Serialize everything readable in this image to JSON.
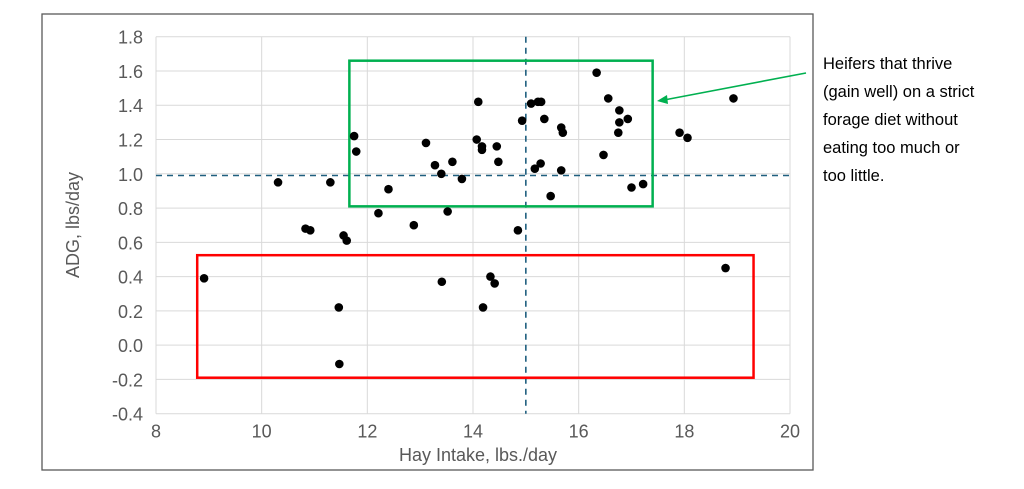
{
  "chart_data": {
    "type": "scatter",
    "title": "",
    "xlabel": "Hay Intake, lbs./day",
    "ylabel": "ADG, lbs/day",
    "xlim": [
      8,
      20
    ],
    "ylim": [
      -0.4,
      1.8
    ],
    "x_ticks": [
      "8",
      "10",
      "12",
      "14",
      "16",
      "18",
      "20"
    ],
    "y_ticks": [
      "-0.4",
      "-0.2",
      "0.0",
      "0.2",
      "0.4",
      "0.6",
      "0.8",
      "1.0",
      "1.2",
      "1.4",
      "1.6",
      "1.8"
    ],
    "grid": true,
    "legend": "none",
    "marker_color": "#000000",
    "points": [
      [
        8.91,
        0.39
      ],
      [
        10.31,
        0.95
      ],
      [
        11.3,
        0.95
      ],
      [
        10.83,
        0.68
      ],
      [
        10.92,
        0.67
      ],
      [
        11.55,
        0.64
      ],
      [
        11.61,
        0.61
      ],
      [
        11.75,
        1.22
      ],
      [
        11.79,
        1.13
      ],
      [
        11.46,
        0.22
      ],
      [
        11.47,
        -0.11
      ],
      [
        12.4,
        0.91
      ],
      [
        12.21,
        0.77
      ],
      [
        12.88,
        0.7
      ],
      [
        13.11,
        1.18
      ],
      [
        13.28,
        1.05
      ],
      [
        13.4,
        1.0
      ],
      [
        13.61,
        1.07
      ],
      [
        13.79,
        0.97
      ],
      [
        13.52,
        0.78
      ],
      [
        13.41,
        0.37
      ],
      [
        14.1,
        1.42
      ],
      [
        14.07,
        1.2
      ],
      [
        14.17,
        1.16
      ],
      [
        14.17,
        1.14
      ],
      [
        14.19,
        0.22
      ],
      [
        14.45,
        1.16
      ],
      [
        14.48,
        1.07
      ],
      [
        14.33,
        0.4
      ],
      [
        14.41,
        0.36
      ],
      [
        14.85,
        0.67
      ],
      [
        14.93,
        1.31
      ],
      [
        15.1,
        1.41
      ],
      [
        15.23,
        1.42
      ],
      [
        15.29,
        1.42
      ],
      [
        15.35,
        1.32
      ],
      [
        15.17,
        1.03
      ],
      [
        15.28,
        1.06
      ],
      [
        15.47,
        0.87
      ],
      [
        15.67,
        1.27
      ],
      [
        15.7,
        1.24
      ],
      [
        15.67,
        1.02
      ],
      [
        16.34,
        1.59
      ],
      [
        16.56,
        1.44
      ],
      [
        16.47,
        1.11
      ],
      [
        16.77,
        1.37
      ],
      [
        16.77,
        1.3
      ],
      [
        16.75,
        1.24
      ],
      [
        16.93,
        1.32
      ],
      [
        17.0,
        0.92
      ],
      [
        17.22,
        0.94
      ],
      [
        17.91,
        1.24
      ],
      [
        18.06,
        1.21
      ],
      [
        18.93,
        1.44
      ],
      [
        18.78,
        0.45
      ]
    ],
    "reference_lines": {
      "vertical_x": 15.0,
      "horizontal_y": 0.99,
      "color": "#1f5f7f",
      "style": "dashed"
    },
    "highlight_boxes": [
      {
        "name": "thrive-box",
        "color": "#00b050",
        "x_range": [
          11.66,
          17.4
        ],
        "y_range": [
          0.81,
          1.66
        ]
      },
      {
        "name": "low-gain-box",
        "color": "#ff0000",
        "x_range": [
          8.78,
          19.31
        ],
        "y_range": [
          -0.19,
          0.525
        ]
      }
    ],
    "annotation": {
      "lines": [
        "Heifers that thrive",
        "(gain well) on a strict",
        "forage diet without",
        "eating too much or",
        "too little."
      ],
      "arrow_color": "#00b050",
      "points_to": "thrive-box"
    }
  }
}
